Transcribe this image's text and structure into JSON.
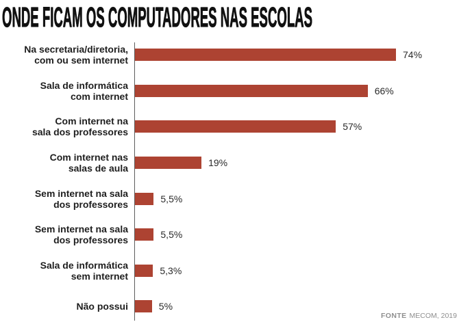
{
  "colors": {
    "background": "#ffffff",
    "title": "#111111",
    "label": "#1e1e1e",
    "value": "#2a2a2a",
    "axis": "#5c5c5c",
    "source": "#8f8f8f"
  },
  "chart_data": {
    "type": "bar",
    "orientation": "horizontal",
    "title": "ONDE FICAM OS COMPUTADORES NAS ESCOLAS",
    "categories": [
      "Na secretaria/diretoria,\ncom ou sem internet",
      "Sala de informática\ncom internet",
      "Com internet na\nsala dos professores",
      "Com internet nas\nsalas de aula",
      "Sem internet na sala\ndos professores",
      "Sem internet na sala\ndos professores",
      "Sala de informática\nsem internet",
      "Não possui"
    ],
    "values": [
      74,
      66,
      57,
      19,
      5.5,
      5.5,
      5.3,
      5
    ],
    "value_labels": [
      "74%",
      "66%",
      "57%",
      "19%",
      "5,5%",
      "5,5%",
      "5,3%",
      "5%"
    ],
    "bar_color": "#ad4332",
    "grid": false
  },
  "source": {
    "label": "FONTE",
    "text": "MECOM, 2019"
  }
}
